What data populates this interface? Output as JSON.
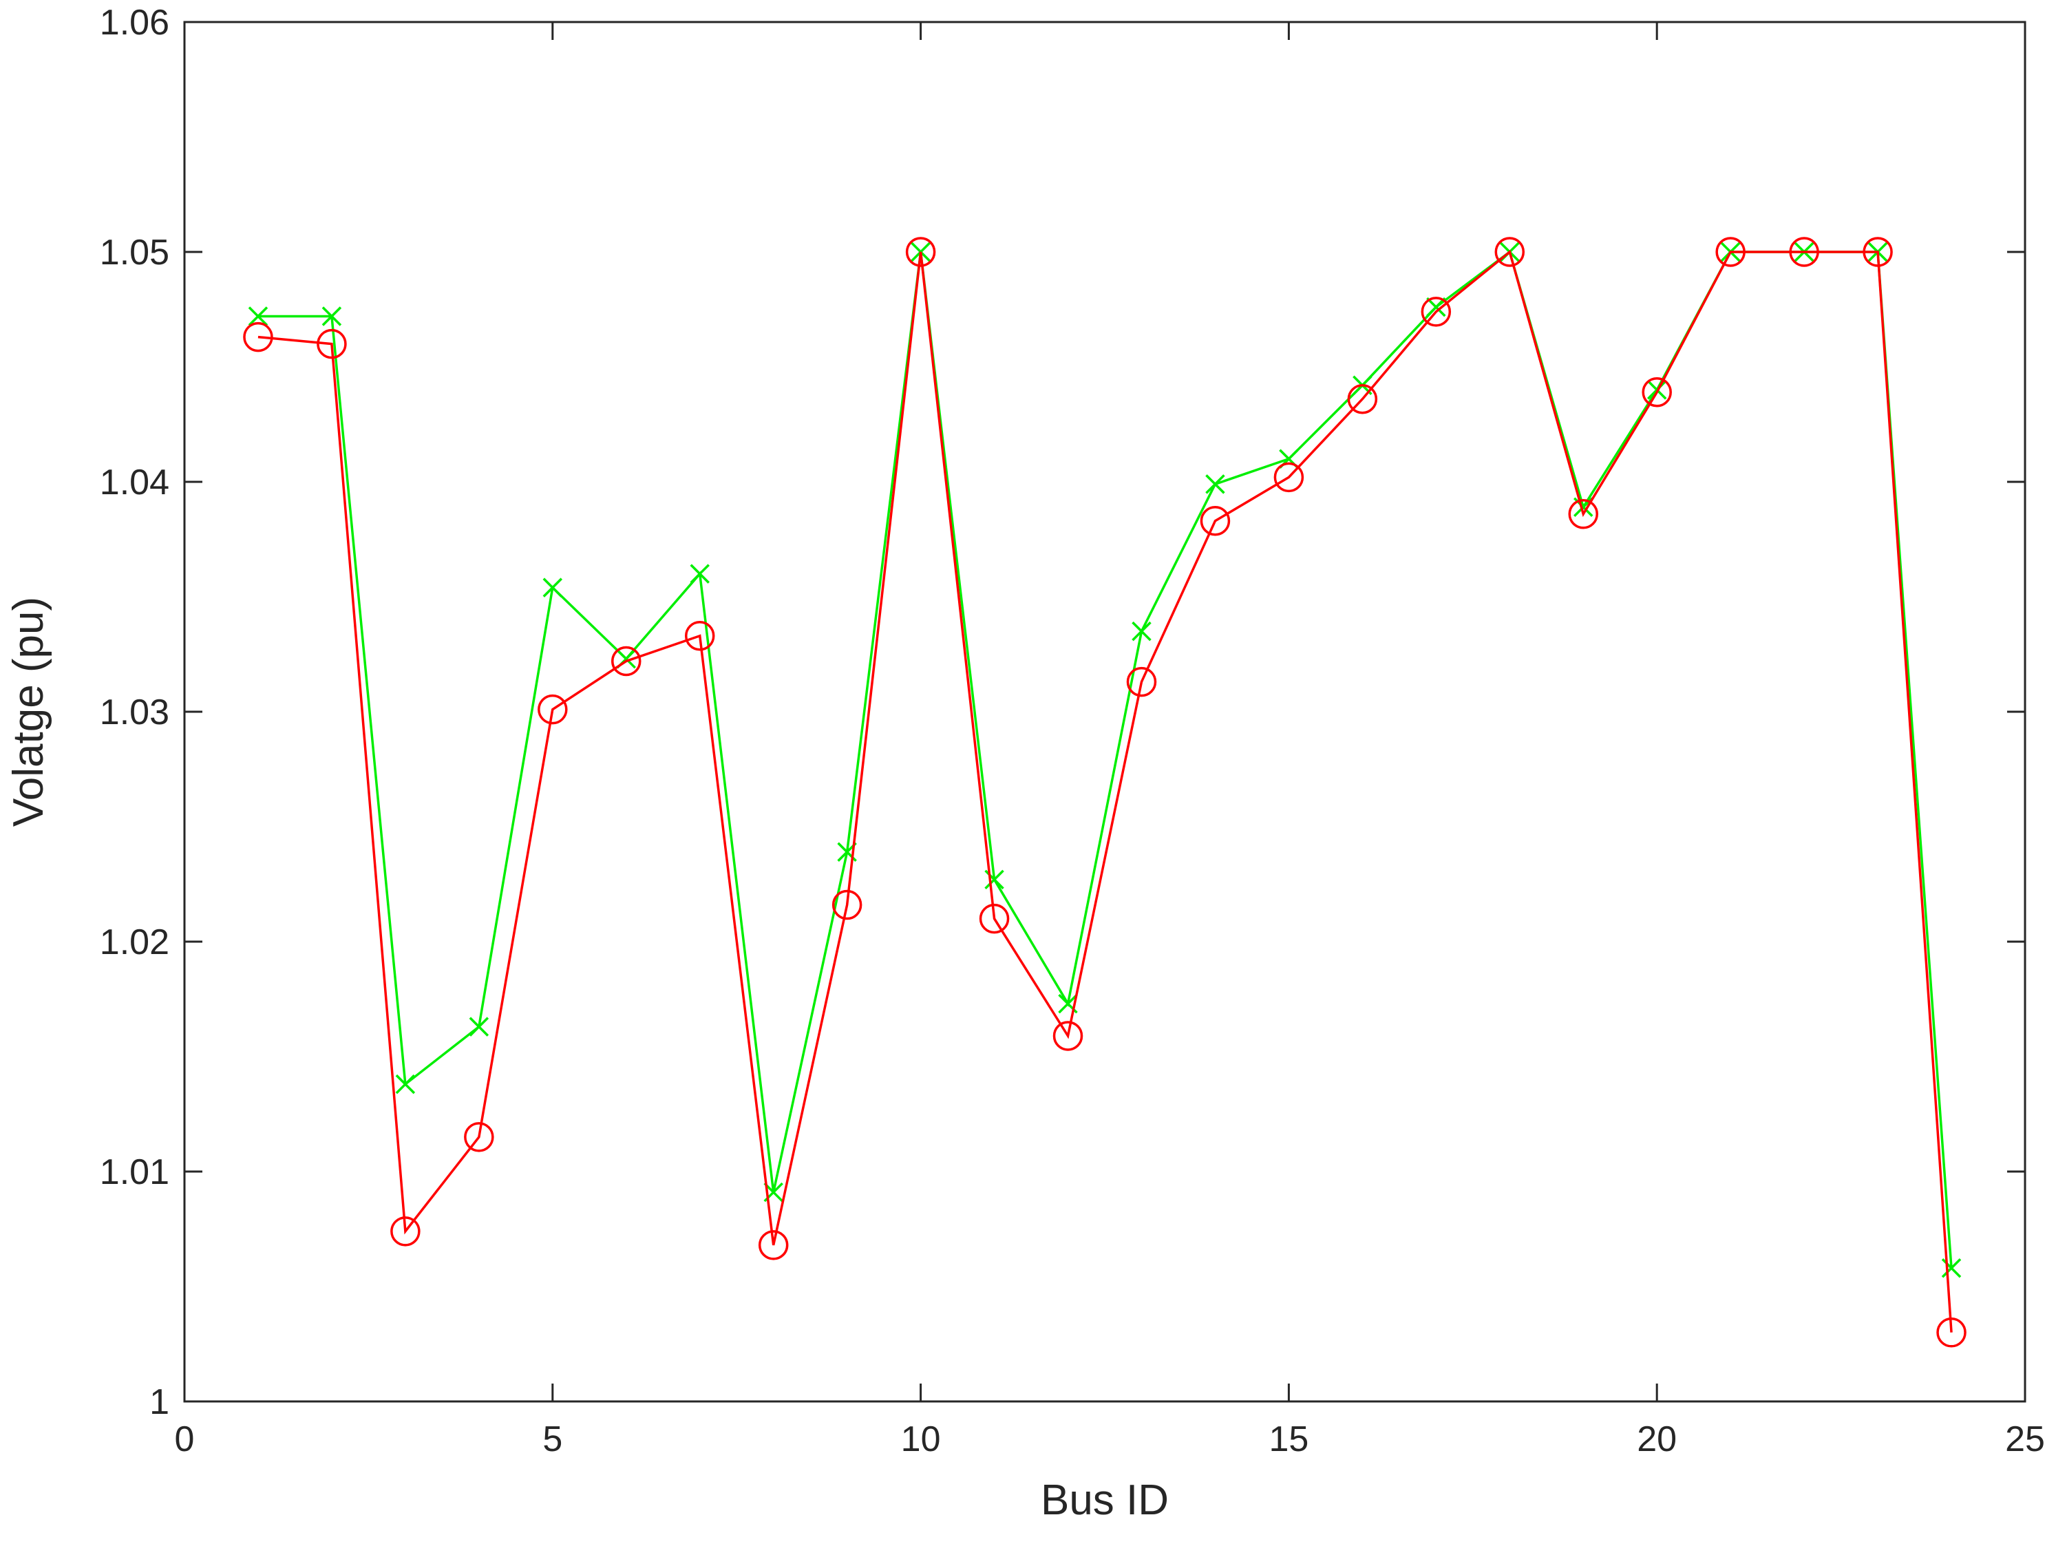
{
  "chart_data": {
    "type": "line",
    "title": "",
    "xlabel": "Bus ID",
    "ylabel": "Volatge (pu)",
    "xlim": [
      0,
      25
    ],
    "ylim": [
      1.0,
      1.06
    ],
    "xticks": [
      0,
      5,
      10,
      15,
      20,
      25
    ],
    "yticks": [
      1,
      1.01,
      1.02,
      1.03,
      1.04,
      1.05,
      1.06
    ],
    "xtick_labels": [
      "0",
      "5",
      "10",
      "15",
      "20",
      "25"
    ],
    "ytick_labels": [
      "1",
      "1.01",
      "1.02",
      "1.03",
      "1.04",
      "1.05",
      "1.06"
    ],
    "grid": false,
    "legend": "none",
    "x": [
      1,
      2,
      3,
      4,
      5,
      6,
      7,
      8,
      9,
      10,
      11,
      12,
      13,
      14,
      15,
      16,
      17,
      18,
      19,
      20,
      21,
      22,
      23,
      24
    ],
    "series": [
      {
        "marker": "x",
        "color": "#00ee00",
        "values": [
          1.0472,
          1.0472,
          1.0138,
          1.0163,
          1.0354,
          1.0323,
          1.036,
          1.0091,
          1.0239,
          1.05,
          1.0227,
          1.0173,
          1.0335,
          1.0399,
          1.041,
          1.0442,
          1.0476,
          1.05,
          1.0389,
          1.044,
          1.05,
          1.05,
          1.05,
          1.0058
        ]
      },
      {
        "marker": "o",
        "color": "#ff0000",
        "values": [
          1.0463,
          1.046,
          1.0074,
          1.0115,
          1.0301,
          1.0322,
          1.0333,
          1.0068,
          1.0216,
          1.05,
          1.021,
          1.0159,
          1.0313,
          1.0383,
          1.0402,
          1.0436,
          1.0474,
          1.05,
          1.0386,
          1.0439,
          1.05,
          1.05,
          1.05,
          1.003
        ]
      }
    ]
  }
}
